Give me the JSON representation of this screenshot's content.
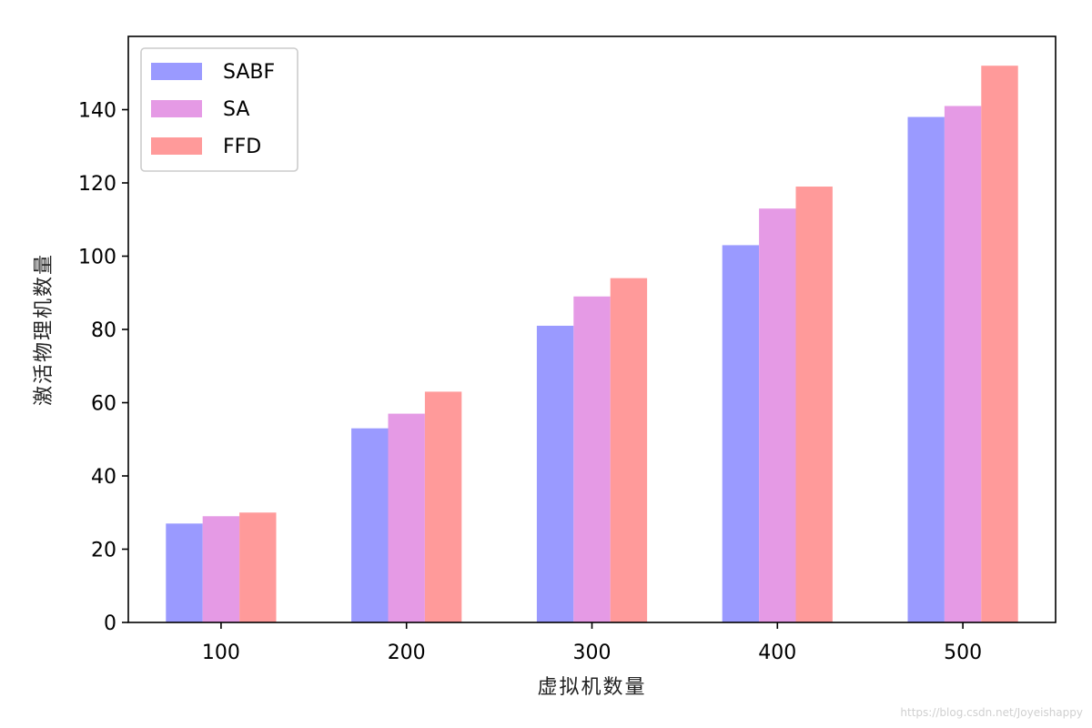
{
  "chart_data": {
    "type": "bar",
    "title": "",
    "xlabel": "虚拟机数量",
    "ylabel": "激活物理机数量",
    "categories": [
      "100",
      "200",
      "300",
      "400",
      "500"
    ],
    "series": [
      {
        "name": "SABF",
        "color": "#9a9aff",
        "values": [
          27,
          53,
          81,
          103,
          138
        ]
      },
      {
        "name": "SA",
        "color": "#e59ae5",
        "values": [
          29,
          57,
          89,
          113,
          141
        ]
      },
      {
        "name": "FFD",
        "color": "#ff9a9a",
        "values": [
          30,
          63,
          94,
          119,
          152
        ]
      }
    ],
    "ylim": [
      0,
      160
    ],
    "yticks": [
      0,
      20,
      40,
      60,
      80,
      100,
      120,
      140
    ],
    "grid": false,
    "legend_position": "top-left"
  },
  "watermark": "https://blog.csdn.net/Joyeishappy"
}
